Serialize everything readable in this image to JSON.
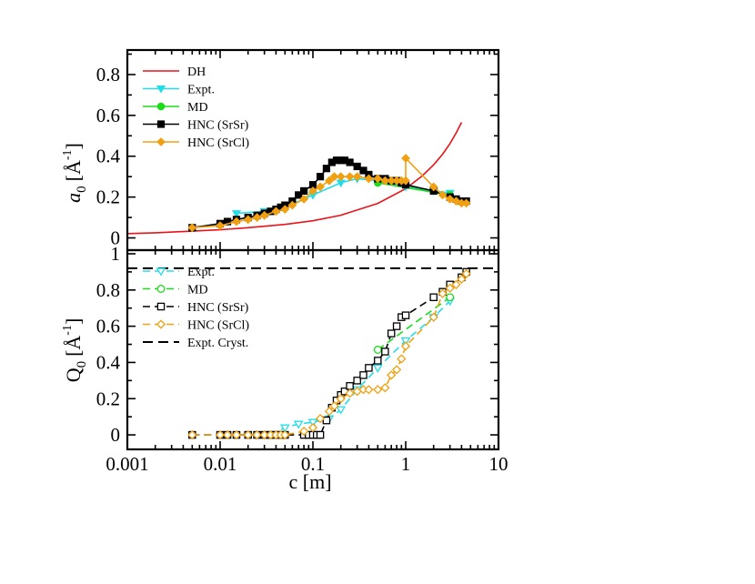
{
  "colors": {
    "DH": "#e8141a",
    "Expt": "#22dde8",
    "MD": "#19dd19",
    "HNC_SrSr": "#000000",
    "HNC_SrCl": "#f0a010",
    "cryst": "#000000"
  },
  "chart_data": [
    {
      "type": "line",
      "panel": "top",
      "xscale": "log",
      "xlim": [
        0.001,
        10
      ],
      "ylim": [
        -0.06,
        0.92
      ],
      "ylabel_main": "a",
      "ylabel_sub": "0",
      "ylabel_unit": "[Å",
      "ylabel_exp": "-1",
      "ylabel_close": "]",
      "yticks": [
        0,
        0.2,
        0.4,
        0.6,
        0.8
      ],
      "ytick_labels": [
        "0",
        "0.2",
        "0.4",
        "0.6",
        "0.8"
      ],
      "legend_position": "top-left",
      "series": [
        {
          "name": "DH",
          "style": "solid-curve",
          "marker": "none",
          "x": [
            0.001,
            0.002,
            0.005,
            0.01,
            0.02,
            0.05,
            0.1,
            0.2,
            0.5,
            1,
            1.5,
            2,
            2.5,
            3,
            3.5,
            4
          ],
          "y": [
            0.021,
            0.025,
            0.033,
            0.04,
            0.05,
            0.066,
            0.084,
            0.111,
            0.169,
            0.241,
            0.303,
            0.358,
            0.41,
            0.462,
            0.514,
            0.566
          ]
        },
        {
          "name": "Expt.",
          "style": "solid",
          "marker": "triangle-down-filled",
          "x": [
            0.015,
            0.03,
            0.05,
            0.1,
            0.2,
            0.3,
            0.5,
            1,
            2,
            3
          ],
          "y": [
            0.12,
            0.13,
            0.15,
            0.21,
            0.27,
            0.29,
            0.28,
            0.25,
            0.23,
            0.22
          ]
        },
        {
          "name": "MD",
          "style": "solid",
          "marker": "circle-filled",
          "x": [
            0.5,
            3
          ],
          "y": [
            0.27,
            0.21
          ]
        },
        {
          "name": "HNC (SrSr)",
          "style": "solid",
          "marker": "square-filled",
          "x": [
            0.005,
            0.01,
            0.012,
            0.015,
            0.02,
            0.025,
            0.03,
            0.035,
            0.04,
            0.045,
            0.05,
            0.06,
            0.07,
            0.08,
            0.1,
            0.12,
            0.14,
            0.16,
            0.18,
            0.2,
            0.22,
            0.25,
            0.3,
            0.35,
            0.4,
            0.5,
            0.6,
            0.7,
            0.8,
            0.9,
            1,
            2,
            3,
            3.5,
            4,
            4.5
          ],
          "y": [
            0.05,
            0.07,
            0.08,
            0.09,
            0.1,
            0.11,
            0.12,
            0.13,
            0.14,
            0.15,
            0.16,
            0.18,
            0.21,
            0.23,
            0.26,
            0.3,
            0.34,
            0.37,
            0.38,
            0.38,
            0.38,
            0.37,
            0.35,
            0.33,
            0.31,
            0.29,
            0.29,
            0.28,
            0.28,
            0.27,
            0.26,
            0.23,
            0.2,
            0.19,
            0.18,
            0.18
          ]
        },
        {
          "name": "HNC (SrCl)",
          "style": "solid",
          "marker": "diamond-filled",
          "x": [
            0.005,
            0.01,
            0.015,
            0.02,
            0.025,
            0.03,
            0.04,
            0.05,
            0.06,
            0.08,
            0.1,
            0.12,
            0.15,
            0.17,
            0.2,
            0.25,
            0.3,
            0.4,
            0.5,
            0.6,
            0.7,
            0.8,
            0.9,
            1,
            1,
            2,
            2.5,
            3,
            3.5,
            4,
            4.5
          ],
          "y": [
            0.05,
            0.06,
            0.08,
            0.09,
            0.1,
            0.11,
            0.13,
            0.14,
            0.16,
            0.19,
            0.23,
            0.25,
            0.28,
            0.3,
            0.3,
            0.3,
            0.3,
            0.29,
            0.29,
            0.28,
            0.28,
            0.28,
            0.28,
            0.28,
            0.39,
            0.25,
            0.21,
            0.19,
            0.18,
            0.17,
            0.17
          ]
        }
      ]
    },
    {
      "type": "line",
      "panel": "bottom",
      "xscale": "log",
      "xlim": [
        0.001,
        10
      ],
      "ylim": [
        -0.08,
        1.02
      ],
      "xlabel": "c [m]",
      "xticks": [
        0.001,
        0.01,
        0.1,
        1,
        10
      ],
      "xtick_labels": [
        "0.001",
        "0.01",
        "0.1",
        "1",
        "10"
      ],
      "ylabel_main": "Q",
      "ylabel_sub": "0",
      "ylabel_unit": "[Å",
      "ylabel_exp": "-1",
      "ylabel_close": "]",
      "yticks": [
        0,
        0.2,
        0.4,
        0.6,
        0.8,
        1
      ],
      "ytick_labels": [
        "0",
        "0.2",
        "0.4",
        "0.6",
        "0.8",
        "1"
      ],
      "legend_position": "top-left",
      "series": [
        {
          "name": "Expt.",
          "style": "dashed",
          "marker": "triangle-down-open",
          "x": [
            0.035,
            0.05,
            0.07,
            0.1,
            0.15,
            0.2,
            0.3,
            0.5,
            1,
            2,
            3
          ],
          "y": [
            0.0,
            0.04,
            0.06,
            0.07,
            0.09,
            0.14,
            0.25,
            0.37,
            0.52,
            0.65,
            0.74
          ]
        },
        {
          "name": "MD",
          "style": "dashed",
          "marker": "circle-open",
          "x": [
            0.5,
            3
          ],
          "y": [
            0.47,
            0.76
          ]
        },
        {
          "name": "HNC (SrSr)",
          "style": "dashed",
          "marker": "square-open",
          "x": [
            0.005,
            0.01,
            0.012,
            0.015,
            0.02,
            0.025,
            0.03,
            0.035,
            0.04,
            0.045,
            0.05,
            0.08,
            0.09,
            0.1,
            0.11,
            0.12,
            0.14,
            0.16,
            0.18,
            0.2,
            0.22,
            0.25,
            0.3,
            0.35,
            0.4,
            0.5,
            0.6,
            0.7,
            0.8,
            0.9,
            1,
            2,
            2.5,
            3,
            4,
            4.5
          ],
          "y": [
            0,
            0,
            0,
            0,
            0,
            0,
            0,
            0,
            0,
            0,
            0,
            0,
            0,
            0,
            0,
            0,
            0.08,
            0.15,
            0.19,
            0.22,
            0.24,
            0.27,
            0.3,
            0.33,
            0.37,
            0.41,
            0.46,
            0.56,
            0.6,
            0.65,
            0.66,
            0.76,
            0.79,
            0.83,
            0.87,
            0.9
          ]
        },
        {
          "name": "HNC (SrCl)",
          "style": "dashed",
          "marker": "diamond-open",
          "x": [
            0.005,
            0.01,
            0.012,
            0.015,
            0.02,
            0.025,
            0.03,
            0.035,
            0.04,
            0.045,
            0.05,
            0.08,
            0.1,
            0.12,
            0.15,
            0.17,
            0.2,
            0.25,
            0.3,
            0.35,
            0.4,
            0.5,
            0.6,
            0.7,
            0.8,
            0.9,
            1,
            2,
            2.5,
            3,
            3.5,
            4,
            4.5
          ],
          "y": [
            0,
            0,
            0,
            0,
            0,
            0,
            0,
            0,
            0,
            0,
            0,
            0.02,
            0.04,
            0.09,
            0.13,
            0.16,
            0.2,
            0.23,
            0.24,
            0.25,
            0.25,
            0.25,
            0.26,
            0.33,
            0.36,
            0.42,
            0.49,
            0.65,
            0.78,
            0.81,
            0.83,
            0.86,
            0.89
          ]
        },
        {
          "name": "Expt. Cryst.",
          "style": "long-dashed",
          "marker": "none",
          "x": [
            0.001,
            10
          ],
          "y": [
            0.92,
            0.92
          ]
        }
      ]
    }
  ]
}
